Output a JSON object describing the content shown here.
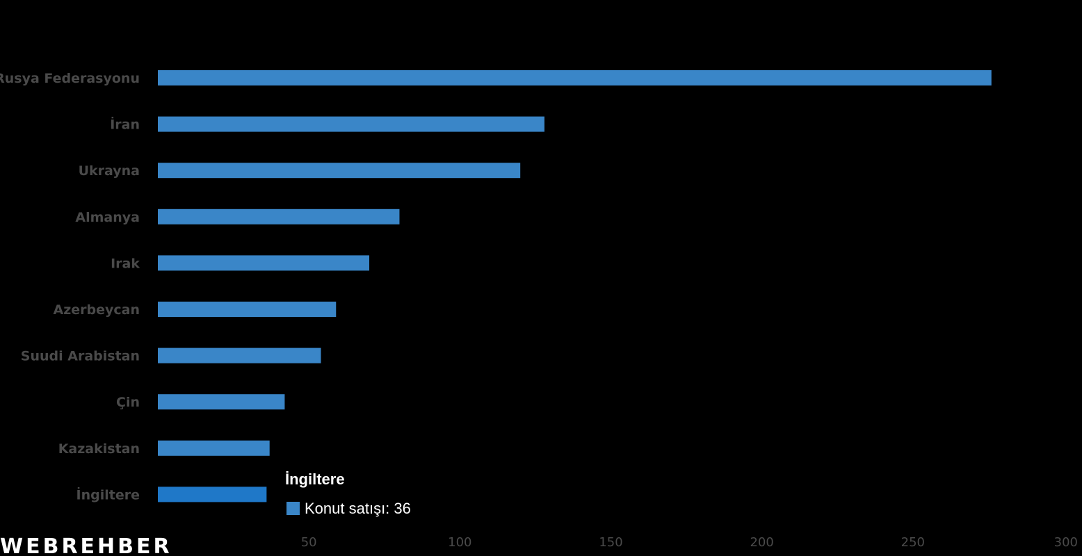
{
  "chart_data": {
    "type": "bar",
    "orientation": "horizontal",
    "categories": [
      "Rusya Federasyonu",
      "İran",
      "Ukrayna",
      "Almanya",
      "Irak",
      "Azerbeycan",
      "Suudi Arabistan",
      "Çin",
      "Kazakistan",
      "İngiltere"
    ],
    "series": [
      {
        "values": [
          276,
          128,
          120,
          80,
          70,
          59,
          54,
          42,
          37,
          36
        ]
      }
    ],
    "xlim": [
      0,
      300
    ],
    "xticks": [
      50,
      100,
      150,
      200,
      250,
      300
    ],
    "grid": false,
    "colors": {
      "bar": "#3a86c8",
      "highlight": "#1f78c8",
      "label": "#4a4a4a",
      "background": "#000000"
    }
  },
  "tooltip": {
    "title": "İngiltere",
    "series_label": "Konut satışı",
    "value": "36",
    "text": "Konut satışı: 36"
  },
  "logo": {
    "text": "WEBREHBER"
  }
}
